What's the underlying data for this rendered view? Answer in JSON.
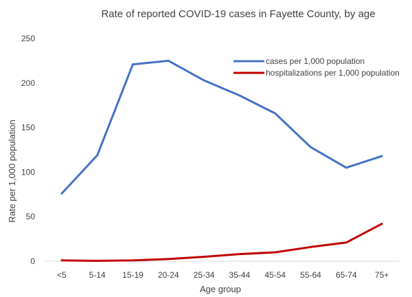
{
  "chart_data": {
    "type": "line",
    "title": "Rate of reported COVID-19 cases in Fayette County, by age",
    "xlabel": "Age group",
    "ylabel": "Rate per 1,000 population",
    "categories": [
      "<5",
      "5-14",
      "15-19",
      "20-24",
      "25-34",
      "35-44",
      "45-54",
      "55-64",
      "65-74",
      "75+"
    ],
    "ylim": [
      0,
      250
    ],
    "yticks": [
      0,
      50,
      100,
      150,
      200,
      250
    ],
    "grid": false,
    "legend_position": "top-right",
    "series": [
      {
        "name": "cases per 1,000 population",
        "color": "#4472C4",
        "values": [
          76,
          119,
          221,
          225,
          203,
          186,
          166,
          128,
          105,
          118
        ]
      },
      {
        "name": "hospitalizations per 1,000 population",
        "color": "#C00000",
        "values": [
          1,
          0.5,
          1,
          2.5,
          5,
          8,
          10,
          16,
          21,
          42
        ]
      }
    ]
  }
}
